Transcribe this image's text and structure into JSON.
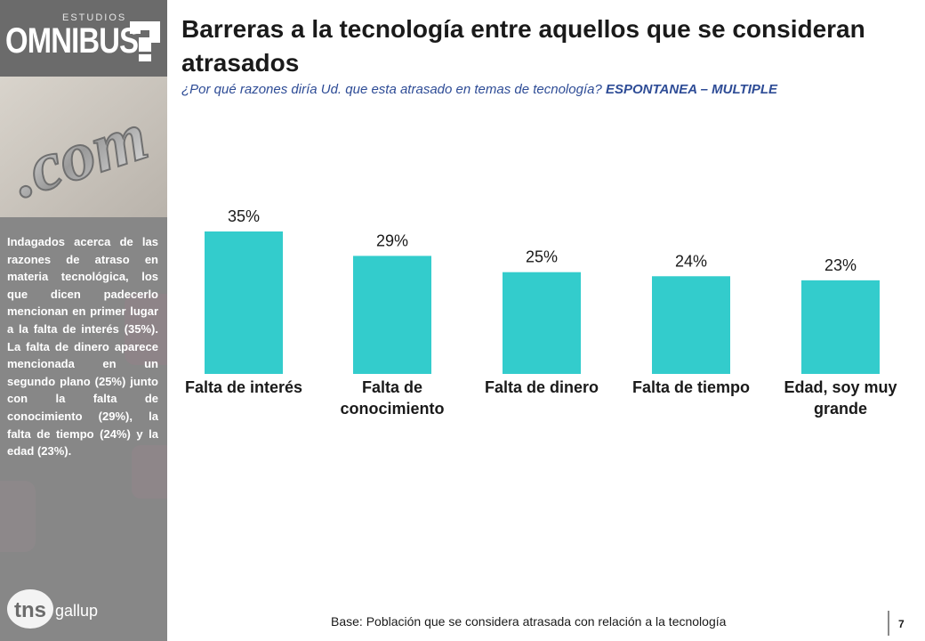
{
  "brand": {
    "studios": "ESTUDIOS",
    "omnibus": "OMNIBUS",
    "photo_text": ".com",
    "tns": "tns",
    "gallup": "gallup"
  },
  "header": {
    "title": "Barreras a la tecnología entre aquellos que se consideran atrasados",
    "subtitle_question": "¿Por qué razones diría Ud. que esta atrasado en temas de tecnología?",
    "subtitle_tag": "ESPONTANEA – MULTIPLE"
  },
  "sidebar": {
    "summary": "Indagados acerca de las razones de atraso en materia tecnológica, los que dicen padecerlo mencionan en primer lugar a la falta de interés (35%). La falta de dinero aparece mencionada en un segundo plano (25%) junto con la falta de conocimiento (29%), la falta de tiempo (24%) y la edad (23%)."
  },
  "chart_data": {
    "type": "bar",
    "categories": [
      "Falta de interés",
      "Falta de conocimiento",
      "Falta de dinero",
      "Falta de tiempo",
      "Edad, soy muy grande"
    ],
    "category_lines": [
      [
        "Falta de interés"
      ],
      [
        "Falta de",
        "conocimiento"
      ],
      [
        "Falta de dinero"
      ],
      [
        "Falta de tiempo"
      ],
      [
        "Edad, soy muy",
        "grande"
      ]
    ],
    "values": [
      35,
      29,
      25,
      24,
      23
    ],
    "value_labels": [
      "35%",
      "29%",
      "25%",
      "24%",
      "23%"
    ],
    "unit": "%",
    "ylim": [
      0,
      35
    ],
    "grid": false,
    "bar_color": "#33cccc"
  },
  "footer": {
    "base": "Base: Población que se considera atrasada con relación a la tecnología",
    "page": "7"
  }
}
